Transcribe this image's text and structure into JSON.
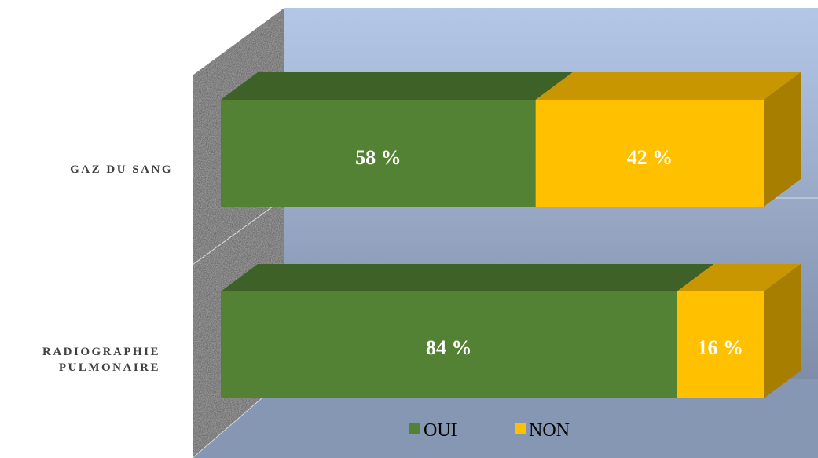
{
  "chart_data": {
    "type": "bar",
    "orientation": "horizontal",
    "stacked": true,
    "percent_stacked": true,
    "three_d": true,
    "categories": [
      "GAZ DU SANG",
      "RADIOGRAPHIE PULMONAIRE"
    ],
    "category_label_lines": [
      [
        "GAZ DU SANG"
      ],
      [
        "RADIOGRAPHIE",
        "PULMONAIRE"
      ]
    ],
    "series": [
      {
        "name": "OUI",
        "values": [
          58,
          84
        ],
        "labels": [
          "58 %",
          "84 %"
        ],
        "color": "#548235"
      },
      {
        "name": "NON",
        "values": [
          42,
          16
        ],
        "labels": [
          "42 %",
          "16 %"
        ],
        "color": "#FFC000"
      }
    ],
    "xlim": [
      0,
      100
    ],
    "legend": {
      "position": "bottom",
      "labels": [
        "OUI",
        "NON"
      ]
    },
    "grid": true,
    "colors": {
      "oui": "#548235",
      "oui_top": "#3E6128",
      "non": "#FFC000",
      "non_top": "#C89600",
      "non_side": "#A77E00",
      "back_wall_top": "#B4C7E7",
      "back_wall_bottom": "#7F8EA8",
      "floor": "#8597B2",
      "side_wall": "#6B6B6B"
    }
  }
}
